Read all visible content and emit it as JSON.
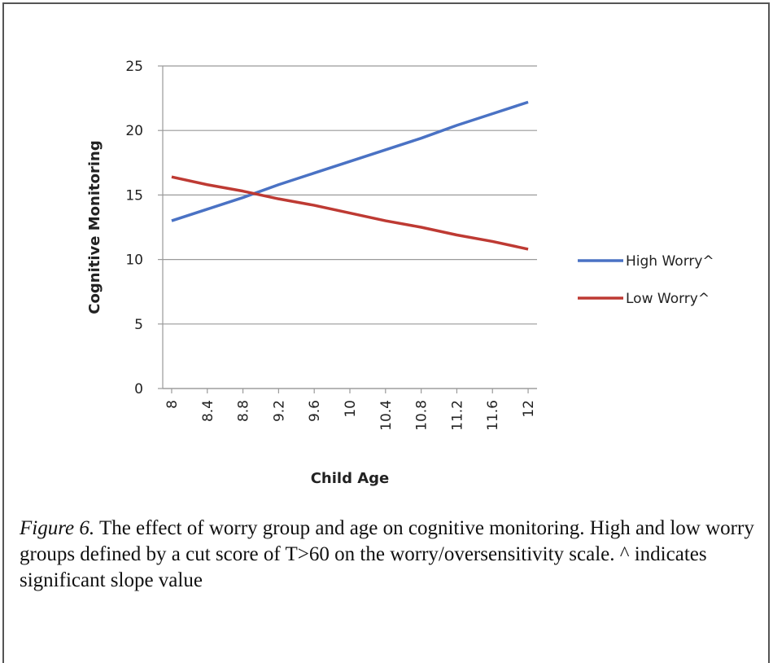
{
  "chart_data": {
    "type": "line",
    "xlabel": "Child Age",
    "ylabel": "Cognitive Monitoring",
    "x": [
      8,
      8.4,
      8.8,
      9.2,
      9.6,
      10,
      10.4,
      10.8,
      11.2,
      11.6,
      12
    ],
    "series": [
      {
        "name": "High Worry^",
        "color": "#4a72c4",
        "values": [
          13.0,
          13.9,
          14.8,
          15.8,
          16.7,
          17.6,
          18.5,
          19.4,
          20.4,
          21.3,
          22.2
        ]
      },
      {
        "name": "Low Worry^",
        "color": "#be3a33",
        "values": [
          16.4,
          15.8,
          15.3,
          14.7,
          14.2,
          13.6,
          13.0,
          12.5,
          11.9,
          11.4,
          10.8
        ]
      }
    ],
    "xlim": [
      7.9,
      12.1
    ],
    "xticks": [
      8,
      8.4,
      8.8,
      9.2,
      9.6,
      10,
      10.4,
      10.8,
      11.2,
      11.6,
      12
    ],
    "ylim": [
      0,
      25
    ],
    "yticks": [
      0,
      5,
      10,
      15,
      20,
      25
    ],
    "grid": true,
    "legend": "right"
  },
  "caption_label": "Figure 6.",
  "caption": "The effect of worry group and age on cognitive monitoring. High and low worry groups defined by a cut score of T>60 on the worry/oversensitivity scale. ^ indicates significant slope value"
}
